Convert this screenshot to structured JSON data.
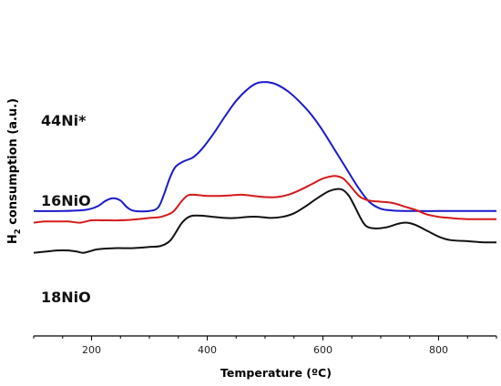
{
  "chart_data": {
    "type": "line",
    "xlabel": "Temperature (ºC)",
    "ylabel_main": "H",
    "ylabel_sub": "2",
    "ylabel_rest": " consumption (a.u.)",
    "xlim": [
      100,
      900
    ],
    "xticks": [
      200,
      400,
      600,
      800
    ],
    "grid": false,
    "legend": "none",
    "series": [
      {
        "name": "44Ni*",
        "color": "#1a1acc",
        "points": [
          [
            100,
            0.08
          ],
          [
            150,
            0.08
          ],
          [
            190,
            0.09
          ],
          [
            210,
            0.12
          ],
          [
            225,
            0.17
          ],
          [
            238,
            0.19
          ],
          [
            250,
            0.17
          ],
          [
            262,
            0.11
          ],
          [
            275,
            0.08
          ],
          [
            300,
            0.08
          ],
          [
            315,
            0.11
          ],
          [
            325,
            0.22
          ],
          [
            335,
            0.36
          ],
          [
            345,
            0.46
          ],
          [
            360,
            0.51
          ],
          [
            375,
            0.54
          ],
          [
            390,
            0.61
          ],
          [
            410,
            0.74
          ],
          [
            430,
            0.89
          ],
          [
            450,
            1.03
          ],
          [
            470,
            1.13
          ],
          [
            485,
            1.18
          ],
          [
            495,
            1.19
          ],
          [
            505,
            1.19
          ],
          [
            520,
            1.17
          ],
          [
            540,
            1.11
          ],
          [
            560,
            1.02
          ],
          [
            580,
            0.91
          ],
          [
            600,
            0.77
          ],
          [
            620,
            0.61
          ],
          [
            640,
            0.45
          ],
          [
            660,
            0.29
          ],
          [
            680,
            0.16
          ],
          [
            700,
            0.1
          ],
          [
            720,
            0.085
          ],
          [
            750,
            0.08
          ],
          [
            800,
            0.08
          ],
          [
            850,
            0.08
          ],
          [
            900,
            0.08
          ]
        ]
      },
      {
        "name": "16NiO",
        "color": "#d41a1a",
        "points": [
          [
            100,
            -0.02
          ],
          [
            120,
            -0.01
          ],
          [
            140,
            -0.01
          ],
          [
            160,
            -0.01
          ],
          [
            180,
            -0.02
          ],
          [
            200,
            0.0
          ],
          [
            220,
            0.0
          ],
          [
            250,
            0.0
          ],
          [
            280,
            0.01
          ],
          [
            300,
            0.02
          ],
          [
            320,
            0.03
          ],
          [
            340,
            0.07
          ],
          [
            355,
            0.16
          ],
          [
            365,
            0.21
          ],
          [
            375,
            0.22
          ],
          [
            400,
            0.21
          ],
          [
            420,
            0.21
          ],
          [
            440,
            0.215
          ],
          [
            460,
            0.22
          ],
          [
            480,
            0.21
          ],
          [
            500,
            0.2
          ],
          [
            520,
            0.2
          ],
          [
            540,
            0.22
          ],
          [
            560,
            0.26
          ],
          [
            580,
            0.31
          ],
          [
            600,
            0.36
          ],
          [
            615,
            0.38
          ],
          [
            625,
            0.38
          ],
          [
            635,
            0.36
          ],
          [
            645,
            0.31
          ],
          [
            655,
            0.25
          ],
          [
            665,
            0.2
          ],
          [
            680,
            0.17
          ],
          [
            700,
            0.16
          ],
          [
            720,
            0.15
          ],
          [
            740,
            0.12
          ],
          [
            760,
            0.09
          ],
          [
            780,
            0.05
          ],
          [
            800,
            0.03
          ],
          [
            820,
            0.02
          ],
          [
            850,
            0.01
          ],
          [
            900,
            0.01
          ]
        ]
      },
      {
        "name": "18NiO",
        "color": "#111111",
        "points": [
          [
            100,
            -0.28
          ],
          [
            120,
            -0.27
          ],
          [
            140,
            -0.26
          ],
          [
            160,
            -0.26
          ],
          [
            175,
            -0.27
          ],
          [
            185,
            -0.28
          ],
          [
            195,
            -0.27
          ],
          [
            210,
            -0.25
          ],
          [
            240,
            -0.24
          ],
          [
            270,
            -0.24
          ],
          [
            300,
            -0.23
          ],
          [
            320,
            -0.22
          ],
          [
            335,
            -0.18
          ],
          [
            345,
            -0.11
          ],
          [
            355,
            -0.03
          ],
          [
            365,
            0.02
          ],
          [
            375,
            0.04
          ],
          [
            390,
            0.04
          ],
          [
            410,
            0.03
          ],
          [
            430,
            0.02
          ],
          [
            450,
            0.02
          ],
          [
            470,
            0.03
          ],
          [
            490,
            0.03
          ],
          [
            510,
            0.02
          ],
          [
            530,
            0.03
          ],
          [
            550,
            0.06
          ],
          [
            570,
            0.12
          ],
          [
            590,
            0.19
          ],
          [
            610,
            0.25
          ],
          [
            625,
            0.27
          ],
          [
            635,
            0.26
          ],
          [
            645,
            0.21
          ],
          [
            655,
            0.12
          ],
          [
            665,
            0.02
          ],
          [
            675,
            -0.05
          ],
          [
            690,
            -0.07
          ],
          [
            710,
            -0.06
          ],
          [
            730,
            -0.03
          ],
          [
            745,
            -0.02
          ],
          [
            760,
            -0.04
          ],
          [
            780,
            -0.09
          ],
          [
            800,
            -0.14
          ],
          [
            820,
            -0.17
          ],
          [
            850,
            -0.18
          ],
          [
            880,
            -0.19
          ],
          [
            900,
            -0.19
          ]
        ]
      }
    ]
  }
}
